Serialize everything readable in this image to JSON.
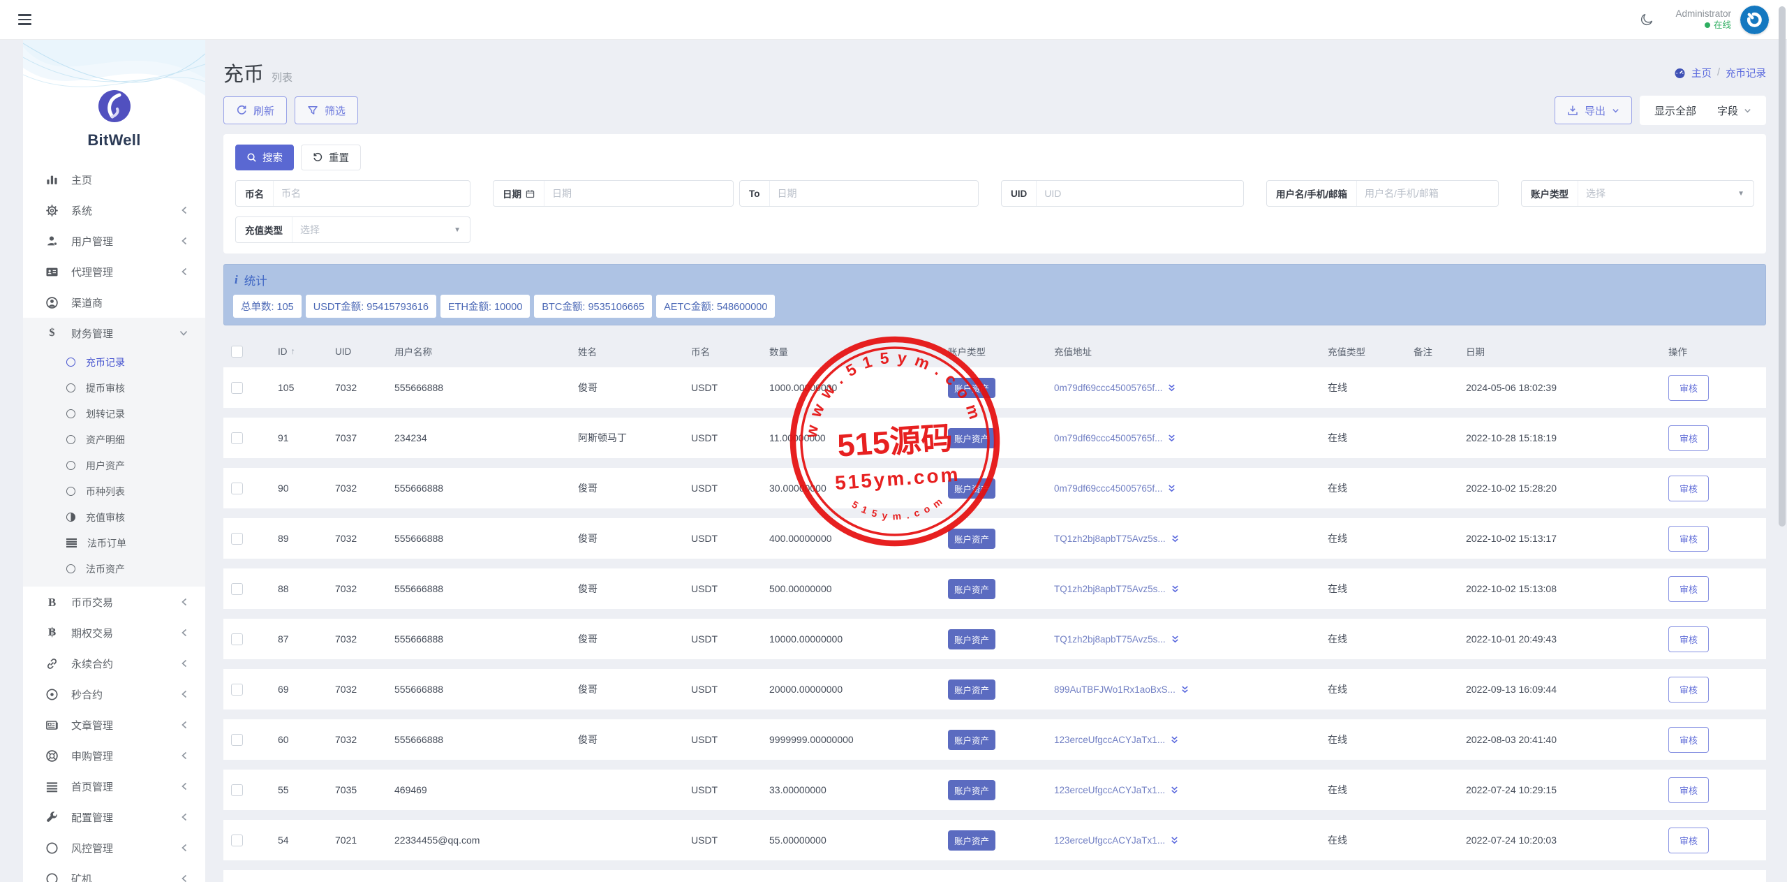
{
  "theme": {
    "accent": "#5a68d2",
    "accent_light": "#8791e2",
    "breadcrumb_blue": "#5867dd",
    "stats_bg": "#aec3e4",
    "stats_text": "#4a67b5",
    "badge_bg": "#5b6bc0",
    "online_green": "#2eae60",
    "avatar_blue": "#1478c0",
    "stamp_red": "#e60e0e",
    "page_bg": "#edeff4",
    "brand_logo_purple": "#5150bf"
  },
  "header": {
    "username": "Administrator",
    "status": "在线"
  },
  "sidebar": {
    "brand": "BitWell",
    "items": [
      {
        "key": "home",
        "label": "主页",
        "icon": "chart",
        "chevron": null
      },
      {
        "key": "system",
        "label": "系统",
        "icon": "gear",
        "chevron": "left"
      },
      {
        "key": "user-mgmt",
        "label": "用户管理",
        "icon": "users",
        "chevron": "left"
      },
      {
        "key": "agent-mgmt",
        "label": "代理管理",
        "icon": "idcard",
        "chevron": "left"
      },
      {
        "key": "channel",
        "label": "渠道商",
        "icon": "usercircle",
        "chevron": null
      },
      {
        "key": "finance-mgmt",
        "label": "财务管理",
        "icon": "dollar",
        "chevron": "down",
        "expanded": true,
        "children": [
          {
            "key": "deposit-records",
            "label": "充币记录",
            "icon": "radio",
            "active": true
          },
          {
            "key": "withdraw-review",
            "label": "提币审核",
            "icon": "radio"
          },
          {
            "key": "transfer-records",
            "label": "划转记录",
            "icon": "radio"
          },
          {
            "key": "asset-detail",
            "label": "资产明细",
            "icon": "radio"
          },
          {
            "key": "user-assets",
            "label": "用户资产",
            "icon": "radio"
          },
          {
            "key": "coin-list",
            "label": "币种列表",
            "icon": "radio"
          },
          {
            "key": "recharge-review",
            "label": "充值审核",
            "icon": "halfcircle"
          },
          {
            "key": "fiat-orders",
            "label": "法币订单",
            "icon": "lines"
          },
          {
            "key": "fiat-assets",
            "label": "法币资产",
            "icon": "radio"
          }
        ]
      },
      {
        "key": "coin-trade",
        "label": "币币交易",
        "icon": "letterB",
        "chevron": "left"
      },
      {
        "key": "option-trade",
        "label": "期权交易",
        "icon": "bitcoinB",
        "chevron": "left"
      },
      {
        "key": "perpetual",
        "label": "永续合约",
        "icon": "chain",
        "chevron": "left"
      },
      {
        "key": "second-contract",
        "label": "秒合约",
        "icon": "circledot",
        "chevron": "left"
      },
      {
        "key": "article-mgmt",
        "label": "文章管理",
        "icon": "news",
        "chevron": "left"
      },
      {
        "key": "subscribe-mgmt",
        "label": "申购管理",
        "icon": "lifering",
        "chevron": "left"
      },
      {
        "key": "homepage-mgmt",
        "label": "首页管理",
        "icon": "bars",
        "chevron": "left"
      },
      {
        "key": "config-mgmt",
        "label": "配置管理",
        "icon": "wrench",
        "chevron": "left"
      },
      {
        "key": "risk-mgmt",
        "label": "风控管理",
        "icon": "circle",
        "chevron": "left"
      },
      {
        "key": "miner",
        "label": "矿机",
        "icon": "circle",
        "chevron": "left"
      }
    ]
  },
  "page": {
    "title": "充币",
    "subtitle": "列表",
    "breadcrumb_home": "主页",
    "breadcrumb_sep": "/",
    "breadcrumb_current": "充币记录"
  },
  "toolbar": {
    "refresh": "刷新",
    "filter": "筛选",
    "export": "导出",
    "show_all": "显示全部",
    "fields": "字段"
  },
  "search": {
    "submit": "搜索",
    "reset": "重置",
    "filters": [
      {
        "key": "coin-name",
        "label": "币名",
        "placeholder": "币名",
        "type": "text"
      },
      {
        "key": "date-from",
        "label": "日期",
        "icon": "calendar",
        "placeholder": "日期",
        "type": "text"
      },
      {
        "key": "date-to",
        "label": "To",
        "placeholder": "日期",
        "type": "text"
      },
      {
        "key": "uid",
        "label": "UID",
        "placeholder": "UID",
        "type": "text"
      },
      {
        "key": "username-phone-email",
        "label": "用户名/手机/邮箱",
        "placeholder": "用户名/手机/邮箱",
        "type": "text"
      },
      {
        "key": "account-type",
        "label": "账户类型",
        "placeholder": "选择",
        "type": "select"
      }
    ],
    "filters_row2": [
      {
        "key": "recharge-type",
        "label": "充值类型",
        "placeholder": "选择",
        "type": "select"
      }
    ]
  },
  "stats": {
    "title": "统计",
    "badges": [
      {
        "label": "总单数:",
        "value": "105"
      },
      {
        "label": "USDT金额:",
        "value": "95415793616"
      },
      {
        "label": "ETH金额:",
        "value": "10000"
      },
      {
        "label": "BTC金额:",
        "value": "9535106665"
      },
      {
        "label": "AETC金额:",
        "value": "548600000"
      }
    ]
  },
  "table": {
    "sort_icon": "↑",
    "columns": [
      "ID",
      "UID",
      "用户名称",
      "姓名",
      "币名",
      "数量",
      "账户类型",
      "充值地址",
      "充值类型",
      "备注",
      "日期",
      "操作"
    ],
    "action": "审核",
    "rows": [
      {
        "id": "105",
        "uid": "7032",
        "username": "555666888",
        "name": "俊哥",
        "coin": "USDT",
        "amount": "1000.00000000",
        "account_type": "账户资产",
        "address": "0m79df69ccc45005765f...",
        "recharge_type": "在线",
        "remark": "",
        "date": "2024-05-06 18:02:39"
      },
      {
        "id": "91",
        "uid": "7037",
        "username": "234234",
        "name": "阿斯顿马丁",
        "coin": "USDT",
        "amount": "11.00000000",
        "account_type": "账户资产",
        "address": "0m79df69ccc45005765f...",
        "recharge_type": "在线",
        "remark": "",
        "date": "2022-10-28 15:18:19"
      },
      {
        "id": "90",
        "uid": "7032",
        "username": "555666888",
        "name": "俊哥",
        "coin": "USDT",
        "amount": "30.00000000",
        "account_type": "账户资产",
        "address": "0m79df69ccc45005765f...",
        "recharge_type": "在线",
        "remark": "",
        "date": "2022-10-02 15:28:20"
      },
      {
        "id": "89",
        "uid": "7032",
        "username": "555666888",
        "name": "俊哥",
        "coin": "USDT",
        "amount": "400.00000000",
        "account_type": "账户资产",
        "address": "TQ1zh2bj8apbT75Avz5s...",
        "recharge_type": "在线",
        "remark": "",
        "date": "2022-10-02 15:13:17"
      },
      {
        "id": "88",
        "uid": "7032",
        "username": "555666888",
        "name": "俊哥",
        "coin": "USDT",
        "amount": "500.00000000",
        "account_type": "账户资产",
        "address": "TQ1zh2bj8apbT75Avz5s...",
        "recharge_type": "在线",
        "remark": "",
        "date": "2022-10-02 15:13:08"
      },
      {
        "id": "87",
        "uid": "7032",
        "username": "555666888",
        "name": "俊哥",
        "coin": "USDT",
        "amount": "10000.00000000",
        "account_type": "账户资产",
        "address": "TQ1zh2bj8apbT75Avz5s...",
        "recharge_type": "在线",
        "remark": "",
        "date": "2022-10-01 20:49:43"
      },
      {
        "id": "69",
        "uid": "7032",
        "username": "555666888",
        "name": "俊哥",
        "coin": "USDT",
        "amount": "20000.00000000",
        "account_type": "账户资产",
        "address": "899AuTBFJWo1Rx1aoBxS...",
        "recharge_type": "在线",
        "remark": "",
        "date": "2022-09-13 16:09:44"
      },
      {
        "id": "60",
        "uid": "7032",
        "username": "555666888",
        "name": "俊哥",
        "coin": "USDT",
        "amount": "9999999.00000000",
        "account_type": "账户资产",
        "address": "123erceUfgccACYJaTx1...",
        "recharge_type": "在线",
        "remark": "",
        "date": "2022-08-03 20:41:40"
      },
      {
        "id": "55",
        "uid": "7035",
        "username": "469469",
        "name": "",
        "coin": "USDT",
        "amount": "33.00000000",
        "account_type": "账户资产",
        "address": "123erceUfgccACYJaTx1...",
        "recharge_type": "在线",
        "remark": "",
        "date": "2022-07-24 10:29:15"
      },
      {
        "id": "54",
        "uid": "7021",
        "username": "22334455@qq.com",
        "name": "",
        "coin": "USDT",
        "amount": "55.00000000",
        "account_type": "账户资产",
        "address": "123erceUfgccACYJaTx1...",
        "recharge_type": "在线",
        "remark": "",
        "date": "2022-07-24 10:20:03"
      }
    ]
  },
  "watermark": {
    "arc_top": "www.515ym.com",
    "center": "515源码",
    "domain": "515ym.com",
    "arc_bottom": "515ym.com"
  }
}
